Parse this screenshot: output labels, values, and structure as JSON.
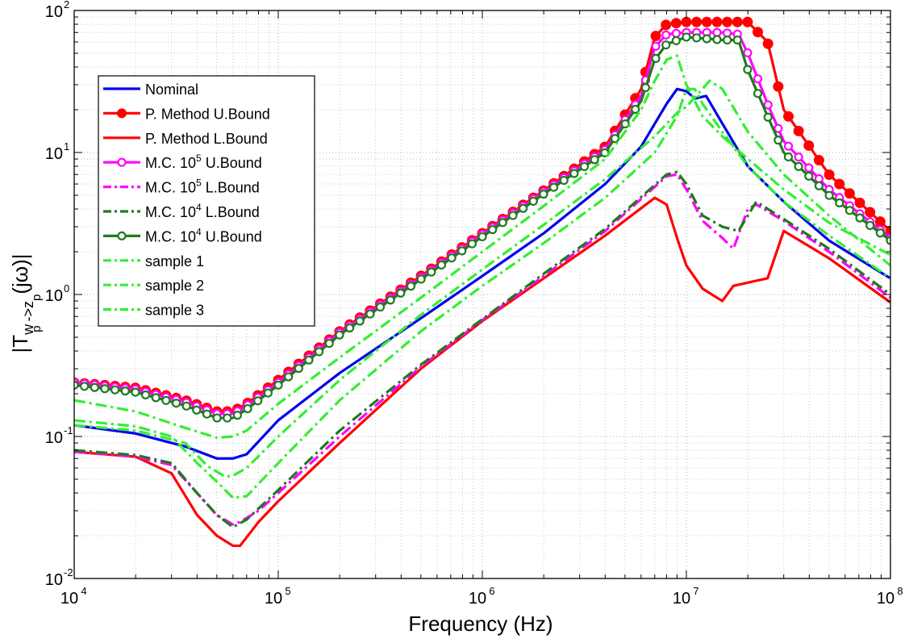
{
  "chart_data": {
    "type": "line",
    "xlabel": "Frequency (Hz)",
    "ylabel": {
      "main": "|T",
      "sub1": "w",
      "sub1b": "p",
      "arrow": " ->z",
      "sub2": "p",
      "tail": "(jω)|"
    },
    "xscale": "log",
    "yscale": "log",
    "xlim": [
      10000,
      100000000
    ],
    "ylim": [
      0.01,
      100
    ],
    "grid": true,
    "legend_position": "upper-left",
    "x_ticks": [
      {
        "base": "10",
        "exp": "4"
      },
      {
        "base": "10",
        "exp": "5"
      },
      {
        "base": "10",
        "exp": "6"
      },
      {
        "base": "10",
        "exp": "7"
      },
      {
        "base": "10",
        "exp": "8"
      }
    ],
    "y_ticks": [
      {
        "base": "10",
        "exp": "-2"
      },
      {
        "base": "10",
        "exp": "-1"
      },
      {
        "base": "10",
        "exp": "0"
      },
      {
        "base": "10",
        "exp": "1"
      },
      {
        "base": "10",
        "exp": "2"
      }
    ],
    "series": [
      {
        "name": "Nominal",
        "color": "#0000ee",
        "style": "solid",
        "marker": "none",
        "points": [
          [
            10000,
            0.12
          ],
          [
            20000,
            0.105
          ],
          [
            35000,
            0.085
          ],
          [
            50000,
            0.07
          ],
          [
            60000,
            0.07
          ],
          [
            70000,
            0.075
          ],
          [
            100000,
            0.13
          ],
          [
            200000,
            0.28
          ],
          [
            500000,
            0.68
          ],
          [
            1000000,
            1.35
          ],
          [
            2000000,
            2.7
          ],
          [
            4000000,
            6.0
          ],
          [
            6000000,
            11
          ],
          [
            8000000,
            22
          ],
          [
            9000000,
            28
          ],
          [
            10000000,
            27
          ],
          [
            11000000,
            24
          ],
          [
            12500000,
            25
          ],
          [
            15000000,
            16
          ],
          [
            20000000,
            8
          ],
          [
            30000000,
            4.5
          ],
          [
            50000000,
            2.4
          ],
          [
            100000000,
            1.3
          ]
        ]
      },
      {
        "name": "P. Method U.Bound",
        "color": "#ff0000",
        "style": "solid",
        "marker": "dot",
        "points": [
          [
            10000,
            0.24
          ],
          [
            20000,
            0.22
          ],
          [
            35000,
            0.18
          ],
          [
            50000,
            0.15
          ],
          [
            60000,
            0.15
          ],
          [
            70000,
            0.17
          ],
          [
            100000,
            0.25
          ],
          [
            200000,
            0.55
          ],
          [
            500000,
            1.35
          ],
          [
            1000000,
            2.7
          ],
          [
            2000000,
            5.4
          ],
          [
            4000000,
            11
          ],
          [
            6000000,
            28
          ],
          [
            7000000,
            65
          ],
          [
            8000000,
            80
          ],
          [
            10000000,
            83
          ],
          [
            15000000,
            83
          ],
          [
            20000000,
            83
          ],
          [
            25000000,
            60
          ],
          [
            30000000,
            20
          ],
          [
            50000000,
            7
          ],
          [
            100000000,
            2.8
          ]
        ]
      },
      {
        "name": "P. Method L.Bound",
        "color": "#ff0000",
        "style": "solid",
        "marker": "none",
        "points": [
          [
            10000,
            0.078
          ],
          [
            20000,
            0.072
          ],
          [
            30000,
            0.055
          ],
          [
            40000,
            0.028
          ],
          [
            50000,
            0.02
          ],
          [
            60000,
            0.017
          ],
          [
            65000,
            0.017
          ],
          [
            80000,
            0.025
          ],
          [
            100000,
            0.035
          ],
          [
            200000,
            0.09
          ],
          [
            500000,
            0.3
          ],
          [
            1000000,
            0.65
          ],
          [
            2000000,
            1.3
          ],
          [
            4000000,
            2.6
          ],
          [
            7000000,
            4.8
          ],
          [
            8000000,
            4.3
          ],
          [
            9000000,
            2.5
          ],
          [
            10000000,
            1.6
          ],
          [
            12000000,
            1.1
          ],
          [
            15000000,
            0.9
          ],
          [
            17000000,
            1.15
          ],
          [
            22000000,
            1.25
          ],
          [
            25000000,
            1.3
          ],
          [
            30000000,
            2.8
          ],
          [
            50000000,
            1.8
          ],
          [
            100000000,
            0.88
          ]
        ]
      },
      {
        "name": "M.C. 10<sup>5</sup> U.Bound",
        "label": "M.C. 10",
        "exp": "5",
        "label_tail": " U.Bound",
        "color": "#ff00ff",
        "style": "solid",
        "marker": "circle",
        "points": [
          [
            10000,
            0.24
          ],
          [
            20000,
            0.215
          ],
          [
            35000,
            0.175
          ],
          [
            50000,
            0.145
          ],
          [
            60000,
            0.145
          ],
          [
            70000,
            0.165
          ],
          [
            100000,
            0.24
          ],
          [
            200000,
            0.54
          ],
          [
            500000,
            1.32
          ],
          [
            1000000,
            2.65
          ],
          [
            2000000,
            5.3
          ],
          [
            4000000,
            10.5
          ],
          [
            6000000,
            25
          ],
          [
            7000000,
            55
          ],
          [
            8000000,
            68
          ],
          [
            10000000,
            70
          ],
          [
            15000000,
            70
          ],
          [
            18000000,
            68
          ],
          [
            20000000,
            50
          ],
          [
            25000000,
            22
          ],
          [
            30000000,
            12
          ],
          [
            50000000,
            5.5
          ],
          [
            100000000,
            2.5
          ]
        ]
      },
      {
        "name": "M.C. 10<sup>5</sup> L.Bound",
        "label": "M.C. 10",
        "exp": "5",
        "label_tail": " L.Bound",
        "color": "#ff00ff",
        "style": "dashdot",
        "marker": "none",
        "points": [
          [
            10000,
            0.078
          ],
          [
            20000,
            0.072
          ],
          [
            30000,
            0.063
          ],
          [
            40000,
            0.04
          ],
          [
            50000,
            0.028
          ],
          [
            60000,
            0.024
          ],
          [
            65000,
            0.025
          ],
          [
            80000,
            0.03
          ],
          [
            100000,
            0.04
          ],
          [
            200000,
            0.1
          ],
          [
            500000,
            0.31
          ],
          [
            1000000,
            0.66
          ],
          [
            2000000,
            1.35
          ],
          [
            4000000,
            2.8
          ],
          [
            8000000,
            6.8
          ],
          [
            9000000,
            7.0
          ],
          [
            10000000,
            5.5
          ],
          [
            12000000,
            3.3
          ],
          [
            15000000,
            2.5
          ],
          [
            17000000,
            2.1
          ],
          [
            20000000,
            4.0
          ],
          [
            22000000,
            4.3
          ],
          [
            30000000,
            3.3
          ],
          [
            50000000,
            2.0
          ],
          [
            100000000,
            0.95
          ]
        ]
      },
      {
        "name": "M.C. 10<sup>4</sup> L.Bound",
        "label": "M.C. 10",
        "exp": "4",
        "label_tail": " L.Bound",
        "color": "#1e7a1e",
        "style": "dashdot",
        "marker": "none",
        "points": [
          [
            10000,
            0.08
          ],
          [
            20000,
            0.074
          ],
          [
            30000,
            0.065
          ],
          [
            40000,
            0.04
          ],
          [
            50000,
            0.028
          ],
          [
            60000,
            0.023
          ],
          [
            70000,
            0.026
          ],
          [
            100000,
            0.042
          ],
          [
            200000,
            0.11
          ],
          [
            500000,
            0.32
          ],
          [
            1000000,
            0.67
          ],
          [
            2000000,
            1.4
          ],
          [
            4000000,
            2.9
          ],
          [
            8000000,
            7.0
          ],
          [
            9000000,
            7.3
          ],
          [
            10000000,
            6.0
          ],
          [
            12000000,
            3.6
          ],
          [
            15000000,
            3.0
          ],
          [
            18000000,
            2.8
          ],
          [
            22000000,
            4.5
          ],
          [
            30000000,
            3.4
          ],
          [
            50000000,
            2.1
          ],
          [
            100000000,
            1.0
          ]
        ]
      },
      {
        "name": "M.C. 10<sup>4</sup> U.Bound",
        "label": "M.C. 10",
        "exp": "4",
        "label_tail": " U.Bound",
        "color": "#1e7a1e",
        "style": "solid",
        "marker": "circle",
        "points": [
          [
            10000,
            0.23
          ],
          [
            20000,
            0.205
          ],
          [
            35000,
            0.165
          ],
          [
            50000,
            0.135
          ],
          [
            60000,
            0.135
          ],
          [
            70000,
            0.155
          ],
          [
            100000,
            0.23
          ],
          [
            200000,
            0.52
          ],
          [
            500000,
            1.28
          ],
          [
            1000000,
            2.55
          ],
          [
            2000000,
            5.1
          ],
          [
            4000000,
            10
          ],
          [
            6000000,
            23
          ],
          [
            7000000,
            45
          ],
          [
            8000000,
            58
          ],
          [
            10000000,
            65
          ],
          [
            15000000,
            62
          ],
          [
            18000000,
            62
          ],
          [
            20000000,
            38
          ],
          [
            25000000,
            18
          ],
          [
            30000000,
            10
          ],
          [
            50000000,
            5
          ],
          [
            100000000,
            2.4
          ]
        ]
      },
      {
        "name": "sample 1",
        "color": "#33ee33",
        "style": "dashdot",
        "marker": "none",
        "points": [
          [
            10000,
            0.18
          ],
          [
            20000,
            0.15
          ],
          [
            35000,
            0.115
          ],
          [
            50000,
            0.098
          ],
          [
            60000,
            0.1
          ],
          [
            70000,
            0.11
          ],
          [
            100000,
            0.17
          ],
          [
            200000,
            0.36
          ],
          [
            500000,
            0.95
          ],
          [
            1000000,
            2.0
          ],
          [
            2000000,
            4.2
          ],
          [
            4000000,
            9
          ],
          [
            6000000,
            20
          ],
          [
            7000000,
            32
          ],
          [
            8000000,
            45
          ],
          [
            9000000,
            48
          ],
          [
            10000000,
            30
          ],
          [
            12000000,
            18
          ],
          [
            15000000,
            13
          ],
          [
            20000000,
            9
          ],
          [
            30000000,
            5.5
          ],
          [
            50000000,
            3.2
          ],
          [
            100000000,
            1.9
          ]
        ]
      },
      {
        "name": "sample 2",
        "color": "#33ee33",
        "style": "dashdot",
        "marker": "none",
        "points": [
          [
            10000,
            0.13
          ],
          [
            20000,
            0.118
          ],
          [
            30000,
            0.1
          ],
          [
            40000,
            0.065
          ],
          [
            50000,
            0.048
          ],
          [
            60000,
            0.037
          ],
          [
            70000,
            0.038
          ],
          [
            100000,
            0.065
          ],
          [
            200000,
            0.18
          ],
          [
            500000,
            0.55
          ],
          [
            1000000,
            1.15
          ],
          [
            2000000,
            2.3
          ],
          [
            4000000,
            4.8
          ],
          [
            7000000,
            10
          ],
          [
            9000000,
            18
          ],
          [
            10000000,
            28
          ],
          [
            11000000,
            28
          ],
          [
            12000000,
            22
          ],
          [
            15000000,
            14
          ],
          [
            20000000,
            8
          ],
          [
            30000000,
            4.5
          ],
          [
            50000000,
            2.6
          ],
          [
            100000000,
            1.3
          ]
        ]
      },
      {
        "name": "sample 3",
        "color": "#33ee33",
        "style": "dashdot",
        "marker": "none",
        "points": [
          [
            10000,
            0.12
          ],
          [
            20000,
            0.11
          ],
          [
            35000,
            0.09
          ],
          [
            45000,
            0.062
          ],
          [
            55000,
            0.052
          ],
          [
            60000,
            0.053
          ],
          [
            70000,
            0.06
          ],
          [
            100000,
            0.1
          ],
          [
            200000,
            0.25
          ],
          [
            500000,
            0.72
          ],
          [
            1000000,
            1.5
          ],
          [
            2000000,
            3.1
          ],
          [
            4000000,
            6.5
          ],
          [
            7000000,
            13
          ],
          [
            9000000,
            19
          ],
          [
            10000000,
            21
          ],
          [
            12000000,
            28
          ],
          [
            13000000,
            32
          ],
          [
            15000000,
            28
          ],
          [
            20000000,
            14
          ],
          [
            30000000,
            7
          ],
          [
            50000000,
            3.6
          ],
          [
            100000000,
            1.6
          ]
        ]
      }
    ]
  }
}
